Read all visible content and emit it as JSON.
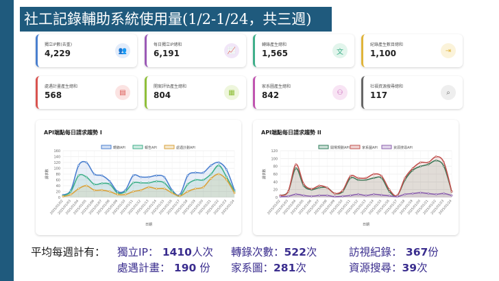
{
  "title": "社工記錄輔助系統使用量(1/2-1/24，共三週)",
  "colors": {
    "blue": "#4a7fcf",
    "green": "#3faf8a",
    "orange": "#d9a23b",
    "darkgreen": "#2e7d5b",
    "red": "#c0504d",
    "purple": "#8a5fae"
  },
  "cards": [
    {
      "label": "獨立IP數(去重)",
      "value": "4,229",
      "icon": "people-icon",
      "color": "#4a7fcf",
      "bg": "#e3ecfa"
    },
    {
      "label": "每日獨立IP總和",
      "value": "6,191",
      "icon": "chart-icon",
      "color": "#9b59b6",
      "bg": "#f1e6f8"
    },
    {
      "label": "轉錄產生總和",
      "value": "1,565",
      "icon": "translate-icon",
      "color": "#3faf8a",
      "bg": "#e2f5ec"
    },
    {
      "label": "紀錄產生數目總和",
      "value": "1,100",
      "icon": "export-icon",
      "color": "#e0b43a",
      "bg": "#fbf3da"
    },
    {
      "label": "處遇計畫產生總和",
      "value": "568",
      "icon": "document-icon",
      "color": "#d9534f",
      "bg": "#fbe3e2"
    },
    {
      "label": "開案評估產生總和",
      "value": "804",
      "icon": "grid-icon",
      "color": "#8fbf3a",
      "bg": "#eef6dc"
    },
    {
      "label": "家系圖產生總和",
      "value": "842",
      "icon": "tree-icon",
      "color": "#c054b0",
      "bg": "#f8e4f4"
    },
    {
      "label": "社福資源搜尋總和",
      "value": "117",
      "icon": "search-icon",
      "color": "#666666",
      "bg": "#eeeeee"
    }
  ],
  "chart_data": [
    {
      "type": "area",
      "title": "API端點每日請求趨勢 I",
      "xlabel": "日期",
      "ylabel": "請求數",
      "ylim": [
        0,
        160
      ],
      "yticks": [
        0,
        20,
        40,
        60,
        80,
        100,
        120,
        140,
        160
      ],
      "legend": "top",
      "x": [
        "2025/01/02",
        "2025/01/03",
        "2025/01/04",
        "2025/01/05",
        "2025/01/06",
        "2025/01/07",
        "2025/01/08",
        "2025/01/09",
        "2025/01/10",
        "2025/01/11",
        "2025/01/12",
        "2025/01/13",
        "2025/01/14",
        "2025/01/15",
        "2025/01/16",
        "2025/01/17",
        "2025/01/18",
        "2025/01/19",
        "2025/01/20",
        "2025/01/21",
        "2025/01/22",
        "2025/01/23",
        "2025/01/24"
      ],
      "series": [
        {
          "name": "轉錄API",
          "color": "#4a7fcf",
          "values": [
            8,
            25,
            110,
            120,
            80,
            75,
            55,
            20,
            25,
            75,
            70,
            70,
            75,
            70,
            25,
            10,
            75,
            85,
            85,
            110,
            120,
            95,
            25
          ]
        },
        {
          "name": "報告API",
          "color": "#3faf8a",
          "values": [
            5,
            20,
            75,
            70,
            45,
            48,
            45,
            15,
            20,
            50,
            50,
            50,
            55,
            50,
            20,
            5,
            45,
            60,
            60,
            80,
            110,
            70,
            20
          ]
        },
        {
          "name": "處遇計劃API",
          "color": "#d9a23b",
          "values": [
            3,
            10,
            30,
            40,
            25,
            25,
            20,
            10,
            10,
            20,
            25,
            35,
            30,
            30,
            15,
            5,
            20,
            30,
            35,
            65,
            80,
            60,
            15
          ]
        }
      ]
    },
    {
      "type": "area",
      "title": "API端點每日請求趨勢 II",
      "xlabel": "日期",
      "ylabel": "請求數",
      "ylim": [
        0,
        120
      ],
      "yticks": [
        0,
        20,
        40,
        60,
        80,
        100,
        120
      ],
      "legend": "top",
      "x": [
        "2025/01/02",
        "2025/01/03",
        "2025/01/04",
        "2025/01/05",
        "2025/01/06",
        "2025/01/07",
        "2025/01/08",
        "2025/01/09",
        "2025/01/10",
        "2025/01/11",
        "2025/01/12",
        "2025/01/13",
        "2025/01/14",
        "2025/01/15",
        "2025/01/16",
        "2025/01/17",
        "2025/01/18",
        "2025/01/19",
        "2025/01/20",
        "2025/01/21",
        "2025/01/22",
        "2025/01/23",
        "2025/01/24"
      ],
      "series": [
        {
          "name": "開場規劃API",
          "color": "#2e7d5b",
          "values": [
            5,
            15,
            75,
            30,
            20,
            25,
            25,
            10,
            15,
            50,
            45,
            45,
            50,
            50,
            15,
            5,
            45,
            70,
            80,
            85,
            95,
            80,
            15
          ]
        },
        {
          "name": "家系圖API",
          "color": "#c0504d",
          "values": [
            5,
            15,
            85,
            35,
            22,
            30,
            25,
            10,
            18,
            55,
            50,
            50,
            60,
            55,
            20,
            5,
            50,
            75,
            90,
            90,
            105,
            90,
            15
          ]
        },
        {
          "name": "資源搜尋API",
          "color": "#8a5fae",
          "values": [
            2,
            3,
            8,
            5,
            3,
            5,
            5,
            2,
            3,
            5,
            8,
            5,
            8,
            6,
            4,
            2,
            8,
            10,
            12,
            10,
            8,
            10,
            5
          ]
        }
      ]
    }
  ],
  "summary": {
    "lead": "平均每週計有：",
    "items": [
      {
        "label": "獨立IP：",
        "value": " 1410",
        "unit": "人次"
      },
      {
        "label": "轉錄次數：",
        "value": "522",
        "unit": "次"
      },
      {
        "label": "訪視紀錄：",
        "value": " 367",
        "unit": "份"
      },
      {
        "label": "處遇計畫：",
        "value": " 190",
        "unit": " 份"
      },
      {
        "label": "家系圖：",
        "value": "281",
        "unit": "次"
      },
      {
        "label": "資源搜尋：",
        "value": "39",
        "unit": "次"
      }
    ]
  }
}
